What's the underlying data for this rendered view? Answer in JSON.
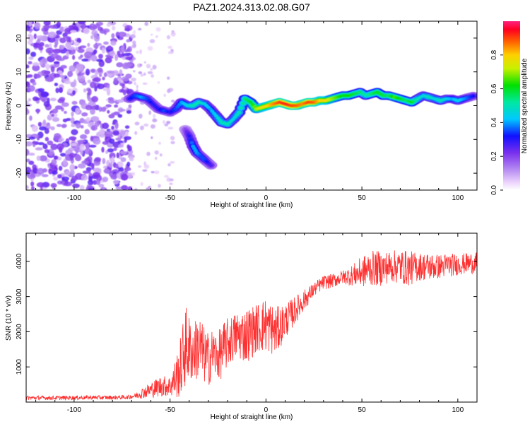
{
  "chart_data": [
    {
      "type": "heatmap",
      "title": "PAZ1.2024.313.02.08.G07",
      "xlabel": "Height of straight line (km)",
      "ylabel": "Frequency (Hz)",
      "xlim": [
        -125,
        110
      ],
      "ylim": [
        -25,
        25
      ],
      "xticks": [
        -100,
        -50,
        0,
        50,
        100
      ],
      "yticks": [
        -20,
        -10,
        0,
        10,
        20
      ],
      "colorbar": {
        "label": "Normalized spectral amplitude",
        "range": [
          0,
          1
        ],
        "ticks": [
          "0.0",
          "0.2",
          "0.4",
          "0.6",
          "0.8"
        ]
      },
      "ridge": {
        "x": [
          -71,
          -68,
          -65,
          -62,
          -59,
          -56,
          -53,
          -50,
          -47,
          -44,
          -41,
          -38,
          -35,
          -32,
          -29,
          -26,
          -23,
          -20,
          -17,
          -14,
          -11,
          -8,
          -5,
          -2,
          1,
          4,
          7,
          10,
          13,
          16,
          19,
          22,
          25,
          28,
          31,
          34,
          37,
          40,
          43,
          46,
          49,
          52,
          55,
          58,
          61,
          64,
          67,
          70,
          73,
          76,
          79,
          82,
          85,
          88,
          91,
          94,
          97,
          100,
          103,
          106,
          109
        ],
        "y": [
          2,
          3,
          2.5,
          2,
          0.5,
          -1,
          -1.5,
          -2,
          -1,
          1,
          0,
          0,
          1,
          0.5,
          -1,
          -3,
          -5,
          -5.5,
          -4,
          -2,
          2,
          1,
          -1,
          -0.5,
          0,
          0.5,
          1,
          0.5,
          0,
          0,
          0.5,
          1,
          1,
          1.5,
          1.5,
          2,
          2.5,
          3,
          3,
          3.5,
          4,
          3,
          3.5,
          4,
          3,
          3,
          2.5,
          2,
          1.5,
          1,
          2,
          3,
          2.5,
          2,
          1.5,
          2,
          2,
          1.5,
          2,
          2.5,
          3
        ],
        "amplitude": [
          0.3,
          0.35,
          0.4,
          0.35,
          0.3,
          0.3,
          0.35,
          0.3,
          0.35,
          0.4,
          0.45,
          0.5,
          0.5,
          0.45,
          0.4,
          0.45,
          0.5,
          0.5,
          0.45,
          0.5,
          0.55,
          0.6,
          0.7,
          0.75,
          0.8,
          0.85,
          0.9,
          0.92,
          0.9,
          0.88,
          0.85,
          0.9,
          0.88,
          0.8,
          0.78,
          0.7,
          0.65,
          0.6,
          0.62,
          0.58,
          0.55,
          0.5,
          0.55,
          0.6,
          0.58,
          0.55,
          0.65,
          0.6,
          0.55,
          0.6,
          0.5,
          0.45,
          0.5,
          0.45,
          0.5,
          0.45,
          0.4,
          0.45,
          0.4,
          0.35,
          0.3
        ]
      },
      "secondary_branch": {
        "x": [
          -42,
          -40,
          -38,
          -36,
          -34,
          -32,
          -30,
          -28
        ],
        "y": [
          -7,
          -9,
          -12,
          -14,
          -15,
          -16,
          -17,
          -18
        ],
        "amplitude": [
          0.2,
          0.3,
          0.4,
          0.4,
          0.35,
          0.35,
          0.3,
          0.25
        ]
      },
      "noise_region": {
        "x_range": [
          -125,
          -70
        ],
        "sparse_x_range": [
          -70,
          -48
        ],
        "amplitude": 0.2
      }
    },
    {
      "type": "line",
      "xlabel": "Height of straight line (km)",
      "ylabel": "SNR (10 * v/v)",
      "xlim": [
        -125,
        110
      ],
      "ylim": [
        0,
        4800
      ],
      "xticks": [
        -100,
        -50,
        0,
        50,
        100
      ],
      "yticks": [
        1000,
        2000,
        3000,
        4000
      ],
      "color": "#ff3030",
      "envelope": {
        "x": [
          -125,
          -110,
          -100,
          -90,
          -80,
          -72,
          -68,
          -65,
          -60,
          -55,
          -50,
          -48,
          -45,
          -42,
          -40,
          -38,
          -35,
          -32,
          -30,
          -28,
          -25,
          -22,
          -20,
          -15,
          -10,
          -5,
          0,
          5,
          10,
          15,
          20,
          25,
          30,
          35,
          40,
          45,
          50,
          55,
          60,
          65,
          70,
          75,
          80,
          85,
          90,
          95,
          100,
          105,
          110
        ],
        "mean": [
          120,
          120,
          125,
          130,
          130,
          140,
          180,
          250,
          350,
          450,
          450,
          600,
          900,
          1600,
          1500,
          1400,
          1600,
          1300,
          1200,
          1400,
          1300,
          1500,
          1700,
          1900,
          1900,
          2100,
          2200,
          2000,
          2300,
          2600,
          2900,
          3200,
          3400,
          3450,
          3550,
          3600,
          3700,
          3800,
          3800,
          3850,
          3850,
          3800,
          3850,
          3850,
          3850,
          3900,
          3900,
          3950,
          3950
        ],
        "amp": [
          60,
          60,
          60,
          60,
          60,
          60,
          80,
          150,
          220,
          300,
          300,
          500,
          800,
          1200,
          1000,
          800,
          1000,
          800,
          800,
          700,
          700,
          800,
          700,
          700,
          800,
          700,
          800,
          700,
          500,
          400,
          300,
          200,
          200,
          200,
          200,
          300,
          450,
          500,
          500,
          450,
          500,
          500,
          400,
          400,
          350,
          350,
          300,
          300,
          300
        ]
      }
    }
  ]
}
